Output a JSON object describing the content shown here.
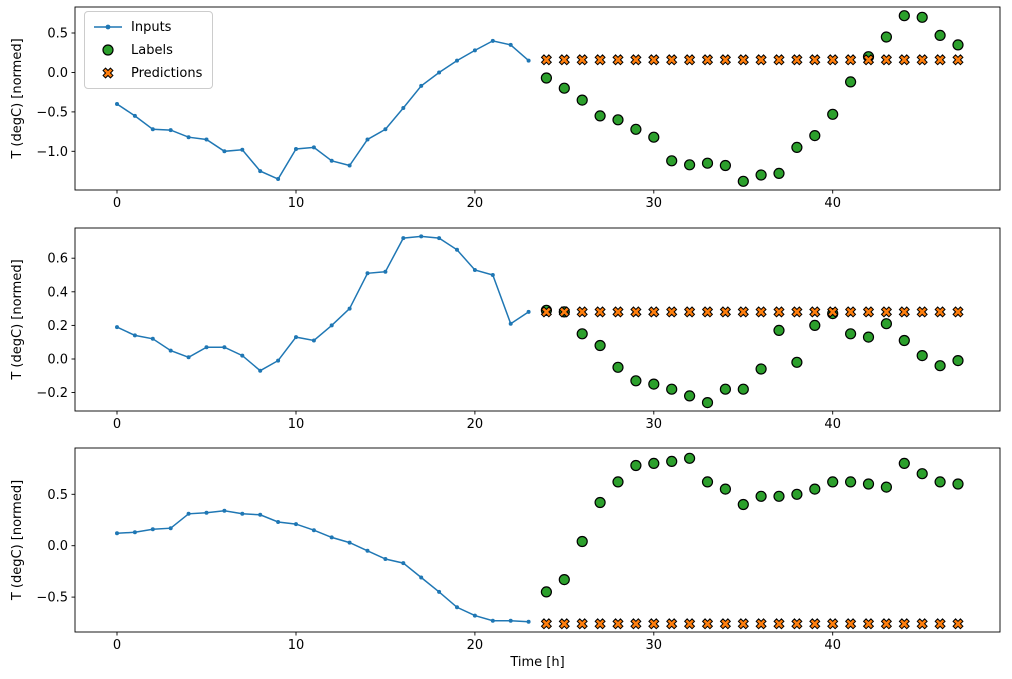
{
  "figure_title": "",
  "chart_colors": {
    "inputs": "#1f77b4",
    "labels": "#2ca02c",
    "predictions": "#ff7f0e",
    "edge": "#000000"
  },
  "legend": {
    "items": [
      {
        "label": "Inputs"
      },
      {
        "label": "Labels"
      },
      {
        "label": "Predictions"
      }
    ]
  },
  "chart_data": [
    {
      "type": "line",
      "title": "",
      "xlabel": "",
      "ylabel": "T (degC) [normed]",
      "xlim": [
        -2.35,
        49.35
      ],
      "ylim": [
        -1.49,
        0.83
      ],
      "xticks": [
        0,
        10,
        20,
        30,
        40
      ],
      "yticks": [
        0.5,
        0.0,
        -0.5,
        -1.0
      ],
      "grid": false,
      "legend_position": "upper left",
      "series": [
        {
          "name": "Inputs",
          "type": "line",
          "marker": "dot",
          "x": [
            0,
            1,
            2,
            3,
            4,
            5,
            6,
            7,
            8,
            9,
            10,
            11,
            12,
            13,
            14,
            15,
            16,
            17,
            18,
            19,
            20,
            21,
            22,
            23
          ],
          "values": [
            -0.4,
            -0.55,
            -0.72,
            -0.73,
            -0.82,
            -0.85,
            -1.0,
            -0.98,
            -1.25,
            -1.35,
            -0.97,
            -0.95,
            -1.12,
            -1.18,
            -0.85,
            -0.72,
            -0.45,
            -0.17,
            0.0,
            0.15,
            0.28,
            0.4,
            0.35,
            0.15
          ]
        },
        {
          "name": "Labels",
          "type": "scatter",
          "marker": "circle",
          "x": [
            24,
            25,
            26,
            27,
            28,
            29,
            30,
            31,
            32,
            33,
            34,
            35,
            36,
            37,
            38,
            39,
            40,
            41,
            42,
            43,
            44,
            45,
            46,
            47
          ],
          "values": [
            -0.07,
            -0.2,
            -0.35,
            -0.55,
            -0.6,
            -0.72,
            -0.82,
            -1.12,
            -1.17,
            -1.15,
            -1.18,
            -1.38,
            -1.3,
            -1.28,
            -0.95,
            -0.8,
            -0.53,
            -0.12,
            0.2,
            0.45,
            0.72,
            0.7,
            0.47,
            0.35
          ]
        },
        {
          "name": "Predictions",
          "type": "scatter",
          "marker": "X",
          "x": [
            24,
            25,
            26,
            27,
            28,
            29,
            30,
            31,
            32,
            33,
            34,
            35,
            36,
            37,
            38,
            39,
            40,
            41,
            42,
            43,
            44,
            45,
            46,
            47
          ],
          "values": [
            0.16,
            0.16,
            0.16,
            0.16,
            0.16,
            0.16,
            0.16,
            0.16,
            0.16,
            0.16,
            0.16,
            0.16,
            0.16,
            0.16,
            0.16,
            0.16,
            0.16,
            0.16,
            0.16,
            0.16,
            0.16,
            0.16,
            0.16,
            0.16
          ]
        }
      ]
    },
    {
      "type": "line",
      "title": "",
      "xlabel": "",
      "ylabel": "T (degC) [normed]",
      "xlim": [
        -2.35,
        49.35
      ],
      "ylim": [
        -0.31,
        0.78
      ],
      "xticks": [
        0,
        10,
        20,
        30,
        40
      ],
      "yticks": [
        0.6,
        0.4,
        0.2,
        0.0,
        -0.2
      ],
      "grid": false,
      "series": [
        {
          "name": "Inputs",
          "type": "line",
          "marker": "dot",
          "x": [
            0,
            1,
            2,
            3,
            4,
            5,
            6,
            7,
            8,
            9,
            10,
            11,
            12,
            13,
            14,
            15,
            16,
            17,
            18,
            19,
            20,
            21,
            22,
            23
          ],
          "values": [
            0.19,
            0.14,
            0.12,
            0.05,
            0.01,
            0.07,
            0.07,
            0.02,
            -0.07,
            -0.01,
            0.13,
            0.11,
            0.2,
            0.3,
            0.51,
            0.52,
            0.72,
            0.73,
            0.72,
            0.65,
            0.53,
            0.5,
            0.21,
            0.28
          ]
        },
        {
          "name": "Labels",
          "type": "scatter",
          "marker": "circle",
          "x": [
            24,
            25,
            26,
            27,
            28,
            29,
            30,
            31,
            32,
            33,
            34,
            35,
            36,
            37,
            38,
            39,
            40,
            41,
            42,
            43,
            44,
            45,
            46,
            47
          ],
          "values": [
            0.29,
            0.28,
            0.15,
            0.08,
            -0.05,
            -0.13,
            -0.15,
            -0.18,
            -0.22,
            -0.26,
            -0.18,
            -0.18,
            -0.06,
            0.17,
            -0.02,
            0.2,
            0.27,
            0.15,
            0.13,
            0.21,
            0.11,
            0.02,
            -0.04,
            -0.01
          ]
        },
        {
          "name": "Predictions",
          "type": "scatter",
          "marker": "X",
          "x": [
            24,
            25,
            26,
            27,
            28,
            29,
            30,
            31,
            32,
            33,
            34,
            35,
            36,
            37,
            38,
            39,
            40,
            41,
            42,
            43,
            44,
            45,
            46,
            47
          ],
          "values": [
            0.28,
            0.28,
            0.28,
            0.28,
            0.28,
            0.28,
            0.28,
            0.28,
            0.28,
            0.28,
            0.28,
            0.28,
            0.28,
            0.28,
            0.28,
            0.28,
            0.28,
            0.28,
            0.28,
            0.28,
            0.28,
            0.28,
            0.28,
            0.28
          ]
        }
      ]
    },
    {
      "type": "line",
      "title": "",
      "xlabel": "Time [h]",
      "ylabel": "T (degC) [normed]",
      "xlim": [
        -2.35,
        49.35
      ],
      "ylim": [
        -0.84,
        0.95
      ],
      "xticks": [
        0,
        10,
        20,
        30,
        40
      ],
      "yticks": [
        0.5,
        0.0,
        -0.5
      ],
      "grid": false,
      "series": [
        {
          "name": "Inputs",
          "type": "line",
          "marker": "dot",
          "x": [
            0,
            1,
            2,
            3,
            4,
            5,
            6,
            7,
            8,
            9,
            10,
            11,
            12,
            13,
            14,
            15,
            16,
            17,
            18,
            19,
            20,
            21,
            22,
            23
          ],
          "values": [
            0.12,
            0.13,
            0.16,
            0.17,
            0.31,
            0.32,
            0.34,
            0.31,
            0.3,
            0.23,
            0.21,
            0.15,
            0.08,
            0.03,
            -0.05,
            -0.13,
            -0.17,
            -0.31,
            -0.45,
            -0.6,
            -0.68,
            -0.73,
            -0.73,
            -0.74
          ]
        },
        {
          "name": "Labels",
          "type": "scatter",
          "marker": "circle",
          "x": [
            24,
            25,
            26,
            27,
            28,
            29,
            30,
            31,
            32,
            33,
            34,
            35,
            36,
            37,
            38,
            39,
            40,
            41,
            42,
            43,
            44,
            45,
            46,
            47
          ],
          "values": [
            -0.45,
            -0.33,
            0.04,
            0.42,
            0.62,
            0.78,
            0.8,
            0.82,
            0.85,
            0.62,
            0.55,
            0.4,
            0.48,
            0.48,
            0.5,
            0.55,
            0.62,
            0.62,
            0.6,
            0.57,
            0.8,
            0.7,
            0.62,
            0.6
          ]
        },
        {
          "name": "Predictions",
          "type": "scatter",
          "marker": "X",
          "x": [
            24,
            25,
            26,
            27,
            28,
            29,
            30,
            31,
            32,
            33,
            34,
            35,
            36,
            37,
            38,
            39,
            40,
            41,
            42,
            43,
            44,
            45,
            46,
            47
          ],
          "values": [
            -0.76,
            -0.76,
            -0.76,
            -0.76,
            -0.76,
            -0.76,
            -0.76,
            -0.76,
            -0.76,
            -0.76,
            -0.76,
            -0.76,
            -0.76,
            -0.76,
            -0.76,
            -0.76,
            -0.76,
            -0.76,
            -0.76,
            -0.76,
            -0.76,
            -0.76,
            -0.76,
            -0.76
          ]
        }
      ]
    }
  ]
}
